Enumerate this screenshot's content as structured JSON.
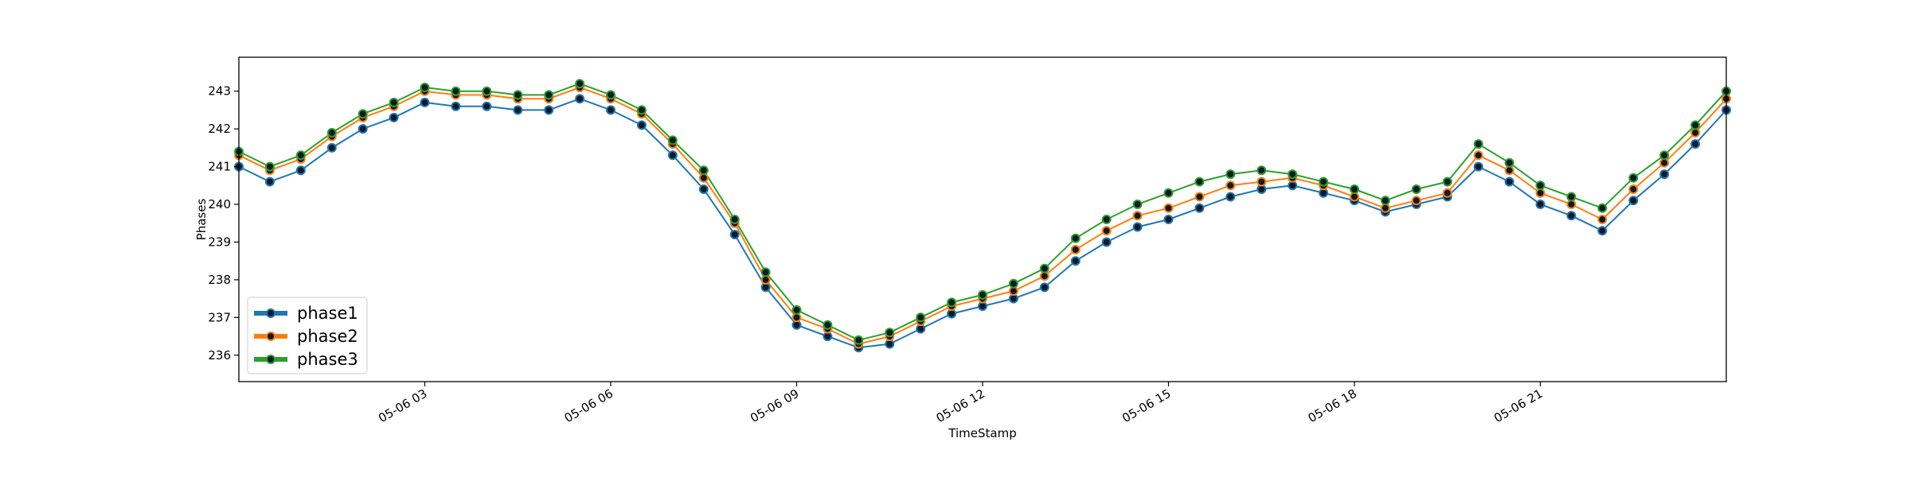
{
  "chart_data": {
    "type": "line",
    "title": "",
    "xlabel": "TimeStamp",
    "ylabel": "Phases",
    "x_unit": "hour of 05-06",
    "xlim": [
      0,
      24
    ],
    "ylim": [
      235.3,
      243.9
    ],
    "yticks": [
      236,
      237,
      238,
      239,
      240,
      241,
      242,
      243
    ],
    "xticks": [
      {
        "value": 3,
        "label": "05-06 03"
      },
      {
        "value": 6,
        "label": "05-06 06"
      },
      {
        "value": 9,
        "label": "05-06 09"
      },
      {
        "value": 12,
        "label": "05-06 12"
      },
      {
        "value": 15,
        "label": "05-06 15"
      },
      {
        "value": 18,
        "label": "05-06 18"
      },
      {
        "value": 21,
        "label": "05-06 21"
      }
    ],
    "legend": {
      "position": "lower-left"
    },
    "grid": false,
    "x": [
      0,
      0.5,
      1,
      1.5,
      2,
      2.5,
      3,
      3.5,
      4,
      4.5,
      5,
      5.5,
      6,
      6.5,
      7,
      7.5,
      8,
      8.5,
      9,
      9.5,
      10,
      10.5,
      11,
      11.5,
      12,
      12.5,
      13,
      13.5,
      14,
      14.5,
      15,
      15.5,
      16,
      16.5,
      17,
      17.5,
      18,
      18.5,
      19,
      19.5,
      20,
      20.5,
      21,
      21.5,
      22,
      22.5,
      23,
      23.5,
      24
    ],
    "series": [
      {
        "name": "phase1",
        "color": "#1f77b4",
        "values": [
          241.0,
          240.6,
          240.9,
          241.5,
          242.0,
          242.3,
          242.7,
          242.6,
          242.6,
          242.5,
          242.5,
          242.8,
          242.5,
          242.1,
          241.3,
          240.4,
          239.2,
          237.8,
          236.8,
          236.5,
          236.2,
          236.3,
          236.7,
          237.1,
          237.3,
          237.5,
          237.8,
          238.5,
          239.0,
          239.4,
          239.6,
          239.9,
          240.2,
          240.4,
          240.5,
          240.3,
          240.1,
          239.8,
          240.0,
          240.2,
          241.0,
          240.6,
          240.0,
          239.7,
          239.3,
          240.1,
          240.8,
          241.6,
          242.5
        ]
      },
      {
        "name": "phase2",
        "color": "#ff7f0e",
        "values": [
          241.3,
          240.9,
          241.2,
          241.8,
          242.3,
          242.6,
          243.0,
          242.9,
          242.9,
          242.8,
          242.8,
          243.1,
          242.8,
          242.4,
          241.6,
          240.7,
          239.5,
          238.0,
          237.0,
          236.7,
          236.3,
          236.5,
          236.9,
          237.3,
          237.5,
          237.7,
          238.1,
          238.8,
          239.3,
          239.7,
          239.9,
          240.2,
          240.5,
          240.6,
          240.7,
          240.5,
          240.2,
          239.9,
          240.1,
          240.3,
          241.3,
          240.9,
          240.3,
          240.0,
          239.6,
          240.4,
          241.1,
          241.9,
          242.8
        ]
      },
      {
        "name": "phase3",
        "color": "#2ca02c",
        "values": [
          241.4,
          241.0,
          241.3,
          241.9,
          242.4,
          242.7,
          243.1,
          243.0,
          243.0,
          242.9,
          242.9,
          243.2,
          242.9,
          242.5,
          241.7,
          240.9,
          239.6,
          238.2,
          237.2,
          236.8,
          236.4,
          236.6,
          237.0,
          237.4,
          237.6,
          237.9,
          238.3,
          239.1,
          239.6,
          240.0,
          240.3,
          240.6,
          240.8,
          240.9,
          240.8,
          240.6,
          240.4,
          240.1,
          240.4,
          240.6,
          241.6,
          241.1,
          240.5,
          240.2,
          239.9,
          240.7,
          241.3,
          242.1,
          243.0
        ]
      }
    ]
  }
}
